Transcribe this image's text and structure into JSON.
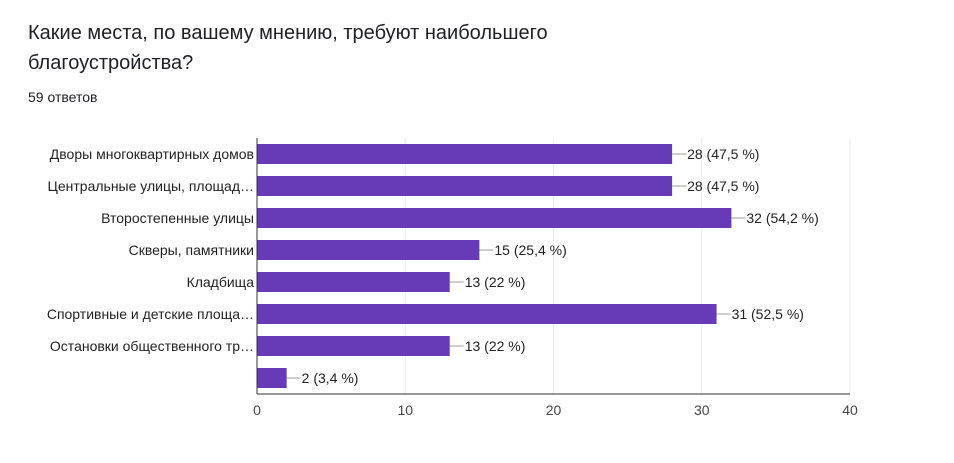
{
  "question": {
    "title": "Какие места, по вашему мнению, требуют наибольшего благоустройства?",
    "responses": "59 ответов"
  },
  "colors": {
    "bar": "#673ab7",
    "grid": "#ebebeb",
    "axis": "#333333"
  },
  "chart_data": {
    "type": "bar",
    "orientation": "horizontal",
    "title": "",
    "xlabel": "",
    "ylabel": "",
    "categories": [
      "Дворы многоквартирных домов",
      "Центральные улицы, площад…",
      "Второстепенные улицы",
      "Скверы, памятники",
      "Кладбища",
      "Спортивные и детские площа…",
      "Остановки общественного тр…",
      ""
    ],
    "values": [
      28,
      28,
      32,
      15,
      13,
      31,
      13,
      2
    ],
    "value_labels": [
      "28 (47,5 %)",
      "28 (47,5 %)",
      "32 (54,2 %)",
      "15 (25,4 %)",
      "13 (22 %)",
      "31 (52,5 %)",
      "13 (22 %)",
      "2 (3,4 %)"
    ],
    "xlim": [
      0,
      40
    ],
    "xticks": [
      "0",
      "10",
      "20",
      "30",
      "40"
    ],
    "grid": true,
    "legend": "none"
  }
}
